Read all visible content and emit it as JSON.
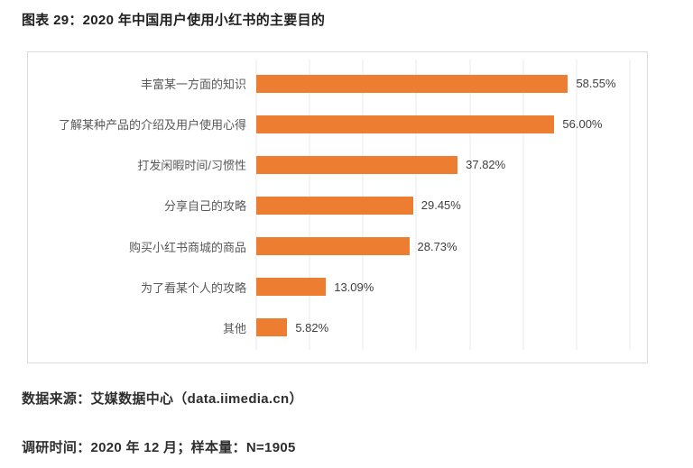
{
  "page": {
    "title": "图表 29：2020 年中国用户使用小红书的主要目的",
    "source_line": "数据来源：艾媒数据中心（data.iimedia.cn）",
    "survey_line": "调研时间：2020 年 12 月；样本量：N=1905"
  },
  "colors": {
    "bar": "#ED7D31",
    "gridline": "#E9E9E9",
    "chart_border": "#DCDCDC",
    "title_text": "#1F1F1F",
    "category_text": "#595959",
    "value_text": "#404040",
    "note_text": "#2E2E2E",
    "background": "#FFFFFF"
  },
  "chart_data": {
    "type": "bar",
    "orientation": "horizontal",
    "title": "2020 年中国用户使用小红书的主要目的",
    "categories": [
      "丰富某一方面的知识",
      "了解某种产品的介绍及用户使用心得",
      "打发闲暇时间/习惯性",
      "分享自己的攻略",
      "购买小红书商城的商品",
      "为了看某个人的攻略",
      "其他"
    ],
    "values": [
      58.55,
      56.0,
      37.82,
      29.45,
      28.73,
      13.09,
      5.82
    ],
    "value_labels": [
      "58.55%",
      "56.00%",
      "37.82%",
      "29.45%",
      "28.73%",
      "13.09%",
      "5.82%"
    ],
    "xlabel": "",
    "ylabel": "",
    "xlim": [
      0,
      70
    ],
    "gridline_interval": 10,
    "grid": true,
    "legend": false,
    "data_labels": "outside-end"
  }
}
